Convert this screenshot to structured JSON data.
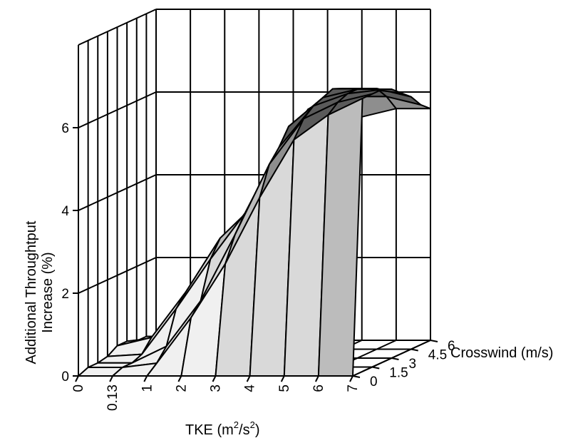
{
  "chart_data": {
    "type": "surface",
    "zlabel_line1": "Additional Throughtput",
    "zlabel_line2": "Increase (%)",
    "xlabel_prefix": "TKE (m",
    "xlabel_exp1": "2",
    "xlabel_mid": "/s",
    "xlabel_exp2": "2",
    "xlabel_suffix": ")",
    "ylabel": "Crosswind (m/s)",
    "x_ticks": [
      "0",
      "0.13",
      "1",
      "2",
      "3",
      "4",
      "5",
      "6",
      "7"
    ],
    "y_ticks": [
      "0",
      "1.5",
      "3",
      "4.5",
      "6"
    ],
    "z_ticks": [
      "0",
      "2",
      "4",
      "6"
    ],
    "x": [
      0,
      0.13,
      1,
      2,
      3,
      4,
      5,
      6,
      7
    ],
    "y": [
      0,
      0.75,
      1.5,
      2.25,
      3,
      3.75,
      4.5,
      5.25,
      6
    ],
    "zlim": [
      0,
      8
    ],
    "z": [
      [
        0,
        0.1,
        0.1,
        0.15,
        0.3,
        0.3,
        0.2,
        0.2,
        0.05
      ],
      [
        0,
        0.1,
        0.1,
        0.2,
        0.5,
        0.4,
        0.3,
        0.2,
        0.1
      ],
      [
        0,
        0.2,
        0.5,
        1.3,
        1.6,
        1.2,
        1.1,
        0.7,
        0.2
      ],
      [
        0,
        1.3,
        1.6,
        2.5,
        2.9,
        2.7,
        2.2,
        1.5,
        0.5
      ],
      [
        0,
        2.6,
        3.2,
        3.6,
        3.7,
        4.2,
        4.0,
        3.3,
        2.3
      ],
      [
        0,
        4.2,
        4.9,
        5.2,
        5.6,
        5.6,
        5.8,
        5.2,
        4.6
      ],
      [
        0,
        5.6,
        6.0,
        6.2,
        6.3,
        6.4,
        6.3,
        6.0,
        5.4
      ],
      [
        0,
        6.2,
        6.4,
        6.5,
        6.5,
        6.4,
        6.3,
        6.0,
        5.6
      ],
      [
        0,
        6.6,
        6.6,
        6.6,
        6.5,
        6.3,
        6.1,
        5.8,
        5.6
      ]
    ],
    "shade_levels": [
      "#f0f0f0",
      "#d9d9d9",
      "#bcbcbc",
      "#8e8e8e",
      "#5a5a5a"
    ],
    "grid": true
  }
}
